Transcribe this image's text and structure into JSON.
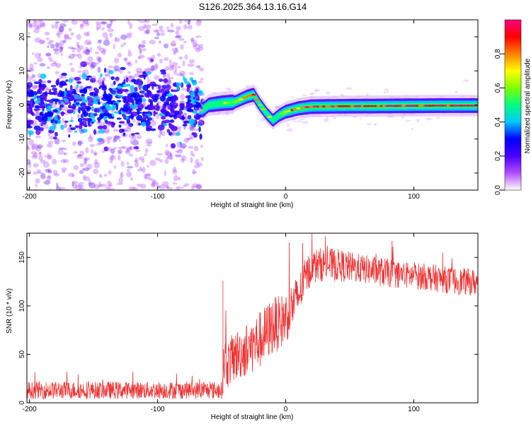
{
  "title": "S126.2025.364.13.16.G14",
  "chart_data": [
    {
      "type": "heatmap",
      "name": "spectrogram",
      "xlabel": "Height of straight line (km)",
      "ylabel": "Frequency (Hz)",
      "xlim": [
        -202,
        150
      ],
      "ylim": [
        -25,
        25
      ],
      "xticks": [
        -200,
        -100,
        0,
        100
      ],
      "yticks": [
        -20,
        -10,
        0,
        10,
        20
      ],
      "colorbar": {
        "label": "Normalized spectral amplitude",
        "range": [
          0,
          1
        ],
        "ticks": [
          0.0,
          0.2,
          0.4,
          0.6,
          0.8
        ],
        "colors": [
          "#ffffff",
          "#b24dff",
          "#4a00ff",
          "#0000ff",
          "#00c8ff",
          "#00ff80",
          "#80ff00",
          "#ffff00",
          "#ff8000",
          "#ff0000",
          "#ff0080"
        ]
      },
      "ridge": {
        "x": [
          -65,
          -60,
          -50,
          -40,
          -30,
          -25,
          -20,
          -15,
          -10,
          -5,
          0,
          5,
          10,
          20,
          40,
          80,
          120,
          150
        ],
        "freq": [
          -1.5,
          0,
          0.5,
          0.8,
          2.5,
          3.0,
          0,
          -2.5,
          -4.5,
          -3,
          -2,
          -1.5,
          -1,
          -0.5,
          -0.4,
          -0.3,
          -0.2,
          -0.2
        ],
        "amplitude": [
          0.35,
          0.4,
          0.55,
          0.6,
          0.75,
          0.8,
          0.7,
          0.6,
          0.55,
          0.6,
          0.75,
          0.8,
          0.85,
          0.9,
          0.9,
          0.95,
          0.95,
          0.95
        ]
      },
      "noise_region": [
        -202,
        -65
      ]
    },
    {
      "type": "line",
      "name": "snr",
      "xlabel": "Height of straight line (km)",
      "ylabel": "SNR (10 * v/v)",
      "xlim": [
        -202,
        150
      ],
      "ylim": [
        0,
        175
      ],
      "xticks": [
        -200,
        -100,
        0,
        100
      ],
      "yticks": [
        0,
        50,
        100,
        150
      ],
      "color": "#ee3333",
      "series": [
        {
          "name": "SNR",
          "x": [
            -202,
            -150,
            -100,
            -60,
            -50,
            -48,
            -45,
            -40,
            -30,
            -20,
            -15,
            -10,
            -5,
            0,
            5,
            10,
            15,
            20,
            25,
            30,
            40,
            50,
            60,
            70,
            80,
            90,
            100,
            110,
            120,
            130,
            140,
            150
          ],
          "mean": [
            13,
            13,
            13,
            13,
            13,
            45,
            40,
            48,
            55,
            65,
            72,
            80,
            82,
            88,
            100,
            110,
            128,
            140,
            142,
            143,
            142,
            140,
            138,
            136,
            134,
            132,
            131,
            130,
            128,
            126,
            125,
            124
          ],
          "spread": [
            9,
            9,
            9,
            9,
            9,
            28,
            25,
            26,
            28,
            30,
            30,
            30,
            28,
            28,
            25,
            22,
            20,
            18,
            18,
            17,
            17,
            16,
            15,
            15,
            15,
            14,
            14,
            14,
            14,
            14,
            14,
            14
          ]
        }
      ]
    }
  ]
}
